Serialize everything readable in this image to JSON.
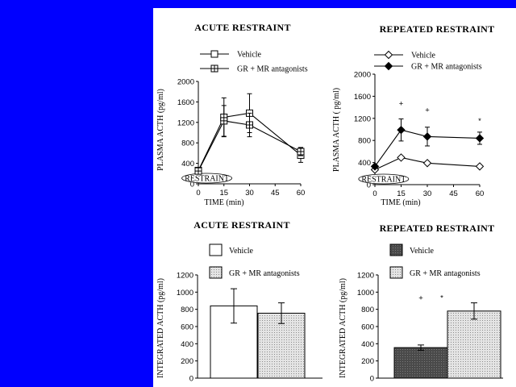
{
  "chart_data": [
    {
      "type": "line",
      "title": "ACUTE RESTRAINT",
      "xlabel": "TIME (min)",
      "ylabel": "PLASMA ACTH (pg/ml)",
      "xticks": [
        0,
        15,
        30,
        45,
        60
      ],
      "yticks": [
        0,
        400,
        800,
        1200,
        1600,
        2000
      ],
      "xlim": [
        0,
        60
      ],
      "ylim": [
        0,
        2000
      ],
      "annotation": "RESTRAINT",
      "x": [
        0,
        15,
        30,
        60
      ],
      "series": [
        {
          "name": "Vehicle",
          "marker": "open-square",
          "values": [
            260,
            1300,
            1380,
            560
          ],
          "errors": [
            0,
            380,
            380,
            140
          ]
        },
        {
          "name": "GR + MR antagonists",
          "marker": "crossed-square",
          "values": [
            250,
            1230,
            1150,
            630
          ],
          "errors": [
            0,
            300,
            230,
            80
          ]
        }
      ]
    },
    {
      "type": "line",
      "title": "REPEATED RESTRAINT",
      "xlabel": "TIME (min)",
      "ylabel": "PLASMA ACTH ( pg/ml)",
      "xticks": [
        0,
        15,
        30,
        45,
        60
      ],
      "yticks": [
        0,
        400,
        800,
        1200,
        1600,
        2000
      ],
      "xlim": [
        0,
        60
      ],
      "ylim": [
        0,
        2000
      ],
      "annotation": "RESTRAINT",
      "significance_marks": [
        {
          "x": 15,
          "symbol": "+"
        },
        {
          "x": 30,
          "symbol": "+"
        },
        {
          "x": 60,
          "symbol": "*"
        }
      ],
      "x": [
        0,
        15,
        30,
        60
      ],
      "series": [
        {
          "name": "Vehicle",
          "marker": "open-diamond",
          "values": [
            270,
            490,
            390,
            330
          ],
          "errors": [
            0,
            0,
            0,
            0
          ]
        },
        {
          "name": "GR + MR antagonists",
          "marker": "filled-diamond",
          "values": [
            330,
            990,
            870,
            840
          ],
          "errors": [
            0,
            200,
            170,
            110
          ]
        }
      ]
    },
    {
      "type": "bar",
      "title": "ACUTE RESTRAINT",
      "ylabel": "INTEGRATED ACTH (pg/ml)",
      "yticks": [
        0,
        200,
        400,
        600,
        800,
        1000,
        1200
      ],
      "ylim": [
        0,
        1200
      ],
      "categories": [
        "Vehicle",
        "GR + MR antagonists"
      ],
      "values": [
        840,
        755
      ],
      "errors": [
        200,
        120
      ],
      "colors": [
        "#ffffff",
        "#d8d8d8"
      ]
    },
    {
      "type": "bar",
      "title": "REPEATED RESTRAINT",
      "ylabel": "INTEGRATED ACTH (pg/ml)",
      "yticks": [
        0,
        200,
        400,
        600,
        800,
        1000,
        1200
      ],
      "ylim": [
        0,
        1200
      ],
      "categories": [
        "Vehicle",
        "GR + MR antagonists"
      ],
      "values": [
        355,
        780
      ],
      "errors": [
        30,
        95
      ],
      "colors": [
        "#555555",
        "#d0d0d0"
      ],
      "significance_marks": [
        "+",
        "*"
      ]
    }
  ]
}
